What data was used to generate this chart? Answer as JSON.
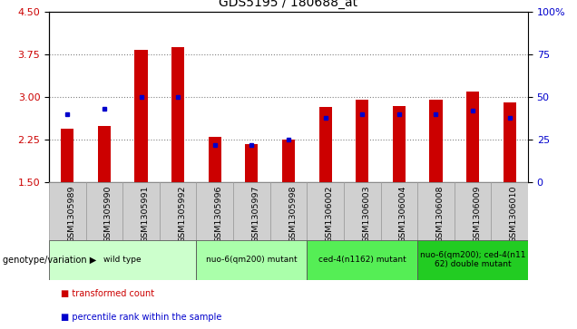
{
  "title": "GDS5195 / 180688_at",
  "samples": [
    "GSM1305989",
    "GSM1305990",
    "GSM1305991",
    "GSM1305992",
    "GSM1305996",
    "GSM1305997",
    "GSM1305998",
    "GSM1306002",
    "GSM1306003",
    "GSM1306004",
    "GSM1306008",
    "GSM1306009",
    "GSM1306010"
  ],
  "red_values": [
    2.45,
    2.5,
    3.82,
    3.87,
    2.3,
    2.18,
    2.25,
    2.82,
    2.95,
    2.85,
    2.95,
    3.1,
    2.9
  ],
  "blue_pct": [
    40,
    43,
    50,
    50,
    22,
    22,
    25,
    38,
    40,
    40,
    40,
    42,
    38
  ],
  "ylim_left": [
    1.5,
    4.5
  ],
  "ylim_right": [
    0,
    100
  ],
  "yticks_left": [
    1.5,
    2.25,
    3.0,
    3.75,
    4.5
  ],
  "yticks_right": [
    0,
    25,
    50,
    75,
    100
  ],
  "ybase": 1.5,
  "grid_values": [
    2.25,
    3.0,
    3.75
  ],
  "red_color": "#cc0000",
  "blue_color": "#0000cc",
  "groups": [
    {
      "label": "wild type",
      "indices": [
        0,
        1,
        2,
        3
      ],
      "color": "#ccffcc"
    },
    {
      "label": "nuo-6(qm200) mutant",
      "indices": [
        4,
        5,
        6
      ],
      "color": "#aaffaa"
    },
    {
      "label": "ced-4(n1162) mutant",
      "indices": [
        7,
        8,
        9
      ],
      "color": "#55ee55"
    },
    {
      "label": "nuo-6(qm200); ced-4(n11\n62) double mutant",
      "indices": [
        10,
        11,
        12
      ],
      "color": "#22cc22"
    }
  ],
  "legend_red": "transformed count",
  "legend_blue": "percentile rank within the sample",
  "genotype_label": "genotype/variation",
  "bar_width": 0.35,
  "gray_cell_color": "#d0d0d0"
}
